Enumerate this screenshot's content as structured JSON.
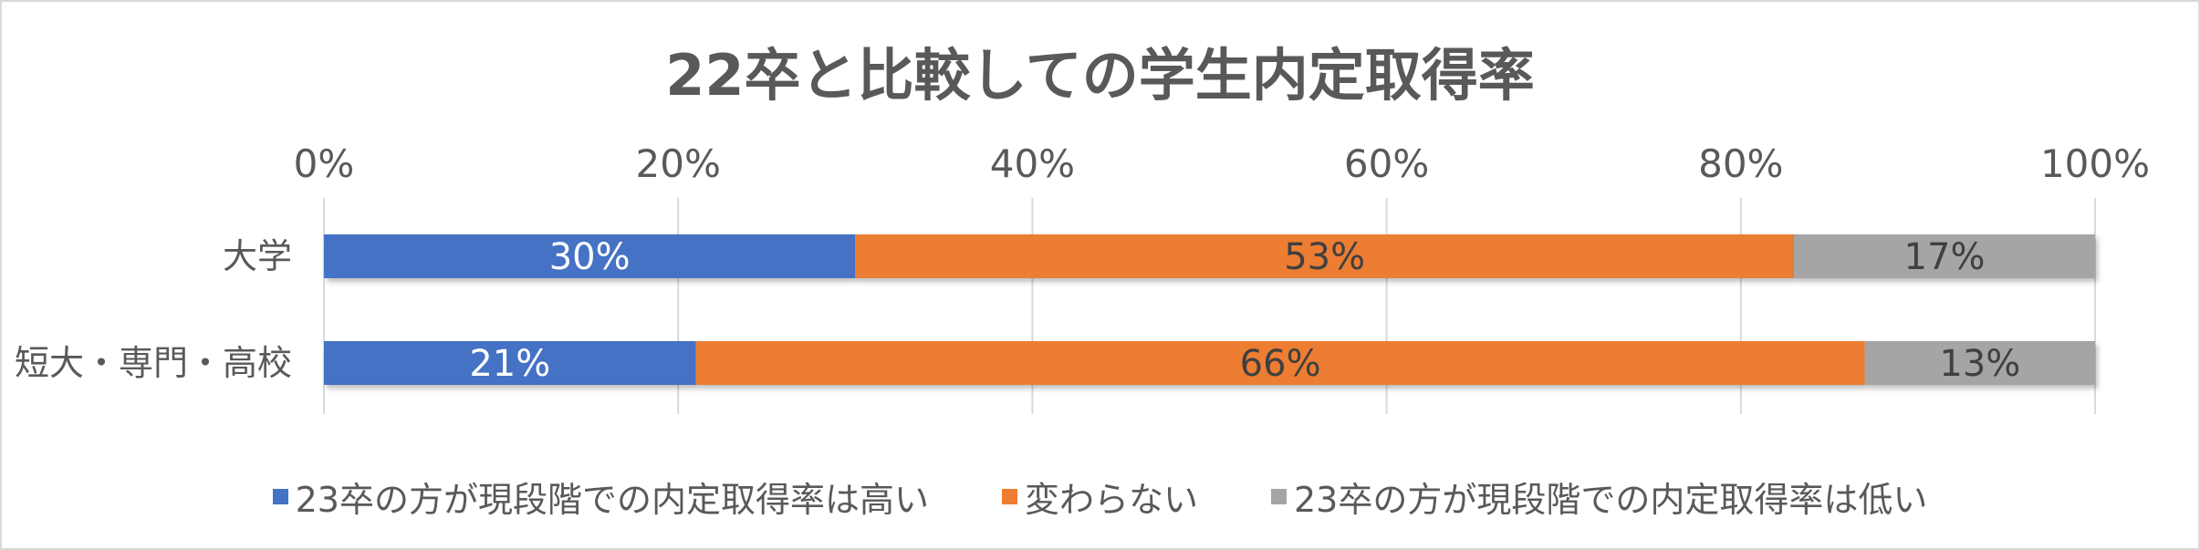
{
  "chart_data": {
    "type": "bar",
    "orientation": "horizontal",
    "stacked": true,
    "title": "22卒と比較しての学生内定取得率",
    "categories": [
      "大学",
      "短大・専門・高校"
    ],
    "series": [
      {
        "name": "23卒の方が現段階での内定取得率は高い",
        "color": "#4472c4",
        "values": [
          30,
          21
        ],
        "labels": [
          "30%",
          "21%"
        ]
      },
      {
        "name": "変わらない",
        "color": "#ed7d31",
        "values": [
          53,
          66
        ],
        "labels": [
          "53%",
          "66%"
        ]
      },
      {
        "name": "23卒の方が現段階での内定取得率は低い",
        "color": "#a5a5a5",
        "values": [
          17,
          13
        ],
        "labels": [
          "17%",
          "13%"
        ]
      }
    ],
    "xlim": [
      0,
      100
    ],
    "x_ticks": [
      "0%",
      "20%",
      "40%",
      "60%",
      "80%",
      "100%"
    ],
    "grid": true,
    "legend_position": "bottom"
  }
}
